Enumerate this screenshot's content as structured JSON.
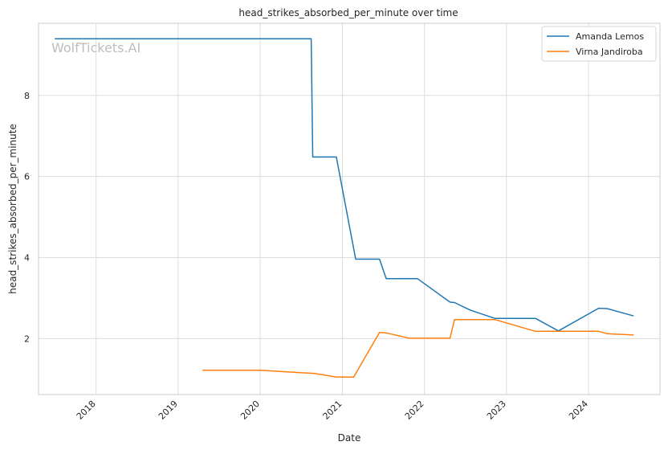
{
  "chart_data": {
    "type": "line",
    "title": "head_strikes_absorbed_per_minute over time",
    "xlabel": "Date",
    "ylabel": "head_strikes_absorbed_per_minute",
    "watermark": "WolfTickets.AI",
    "grid": true,
    "legend_position": "top-right",
    "xlim": [
      "2017-04-20",
      "2024-11-14"
    ],
    "ylim": [
      0.62,
      9.78
    ],
    "x_ticks": [
      {
        "date": "2018-01-01",
        "label": "2018"
      },
      {
        "date": "2019-01-01",
        "label": "2019"
      },
      {
        "date": "2020-01-01",
        "label": "2020"
      },
      {
        "date": "2021-01-01",
        "label": "2021"
      },
      {
        "date": "2022-01-01",
        "label": "2022"
      },
      {
        "date": "2023-01-01",
        "label": "2023"
      },
      {
        "date": "2024-01-01",
        "label": "2024"
      }
    ],
    "y_ticks": [
      2,
      4,
      6,
      8
    ],
    "series": [
      {
        "name": "Amanda Lemos",
        "color": "#1f77b4",
        "points": [
          {
            "x": "2017-07-01",
            "y": 9.4
          },
          {
            "x": "2020-08-15",
            "y": 9.4
          },
          {
            "x": "2020-08-22",
            "y": 6.48
          },
          {
            "x": "2020-12-05",
            "y": 6.48
          },
          {
            "x": "2021-03-01",
            "y": 3.96
          },
          {
            "x": "2021-06-15",
            "y": 3.96
          },
          {
            "x": "2021-07-15",
            "y": 3.48
          },
          {
            "x": "2021-12-01",
            "y": 3.48
          },
          {
            "x": "2022-04-25",
            "y": 2.9
          },
          {
            "x": "2022-05-15",
            "y": 2.89
          },
          {
            "x": "2022-07-25",
            "y": 2.7
          },
          {
            "x": "2022-11-10",
            "y": 2.5
          },
          {
            "x": "2023-05-10",
            "y": 2.5
          },
          {
            "x": "2023-08-20",
            "y": 2.19
          },
          {
            "x": "2024-02-15",
            "y": 2.75
          },
          {
            "x": "2024-03-25",
            "y": 2.74
          },
          {
            "x": "2024-07-20",
            "y": 2.56
          }
        ]
      },
      {
        "name": "Virna Jandiroba",
        "color": "#ff7f0e",
        "points": [
          {
            "x": "2019-04-20",
            "y": 1.22
          },
          {
            "x": "2020-01-01",
            "y": 1.22
          },
          {
            "x": "2020-08-30",
            "y": 1.14
          },
          {
            "x": "2020-12-05",
            "y": 1.05
          },
          {
            "x": "2021-02-20",
            "y": 1.05
          },
          {
            "x": "2021-06-15",
            "y": 2.15
          },
          {
            "x": "2021-07-15",
            "y": 2.14
          },
          {
            "x": "2021-10-25",
            "y": 2.01
          },
          {
            "x": "2022-04-25",
            "y": 2.01
          },
          {
            "x": "2022-05-15",
            "y": 2.47
          },
          {
            "x": "2022-11-10",
            "y": 2.47
          },
          {
            "x": "2023-05-10",
            "y": 2.18
          },
          {
            "x": "2024-02-15",
            "y": 2.18
          },
          {
            "x": "2024-03-25",
            "y": 2.12
          },
          {
            "x": "2024-07-20",
            "y": 2.09
          }
        ]
      }
    ]
  }
}
